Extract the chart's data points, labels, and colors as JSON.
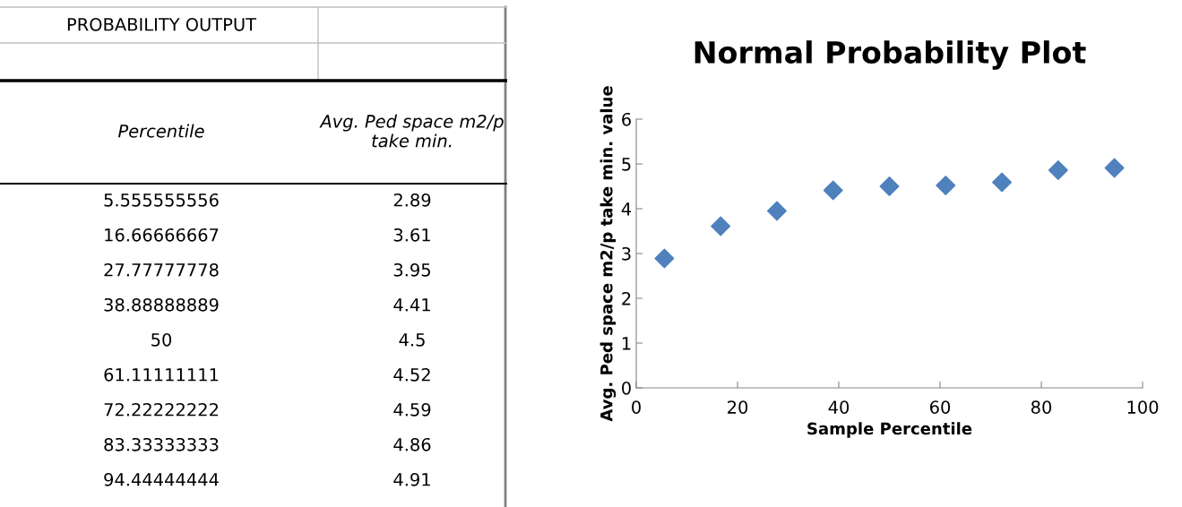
{
  "chart_data": [
    {
      "type": "other",
      "annotations": [
        "PROBABILITY OUTPUT",
        "Percentile",
        "Avg. Ped space m2/p take min.",
        "5.555555556",
        "2.89",
        "16.66666667",
        "3.61",
        "27.77777778",
        "3.95",
        "38.88888889",
        "4.41",
        "50",
        "4.5",
        "61.11111111",
        "4.52",
        "72.22222222",
        "4.59",
        "83.33333333",
        "4.86",
        "94.44444444",
        "4.91"
      ]
    },
    {
      "type": "scatter",
      "title": "Normal Probability Plot",
      "xlabel": "Sample Percentile",
      "ylabel": "Avg. Ped space m2/p take min. value",
      "x": [
        5.555555556,
        16.66666667,
        27.77777778,
        38.88888889,
        50,
        61.11111111,
        72.22222222,
        83.33333333,
        94.44444444
      ],
      "series": [
        {
          "color": "#4f81bd",
          "values": [
            2.89,
            3.61,
            3.95,
            4.41,
            4.5,
            4.52,
            4.59,
            4.86,
            4.91
          ]
        }
      ],
      "xlim": [
        0,
        100
      ],
      "xticks": [
        0,
        20,
        40,
        60,
        80,
        100
      ],
      "ylim": [
        0,
        6
      ],
      "yticks": [
        0,
        1,
        2,
        3,
        4,
        5,
        6
      ],
      "marker": "diamond",
      "grid": false,
      "legend": false
    }
  ]
}
